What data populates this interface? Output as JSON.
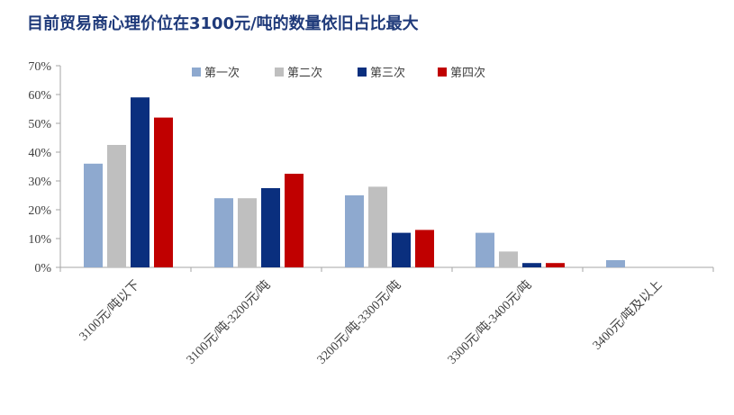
{
  "title": "目前贸易商心理价位在3100元/吨的数量依旧占比最大",
  "chart_data": {
    "type": "bar",
    "categories": [
      "3100元/吨以下",
      "3100元/吨-3200元/吨",
      "3200元/吨-3300元/吨",
      "3300元/吨-3400元/吨",
      "3400元/吨及以上"
    ],
    "series": [
      {
        "name": "第一次",
        "color": "#8EA9CF",
        "values": [
          36,
          24,
          25,
          12,
          2.5
        ]
      },
      {
        "name": "第二次",
        "color": "#BFBFBF",
        "values": [
          42.5,
          24,
          28,
          5.5,
          0
        ]
      },
      {
        "name": "第三次",
        "color": "#0A2F7E",
        "values": [
          59,
          27.5,
          12,
          1.5,
          0
        ]
      },
      {
        "name": "第四次",
        "color": "#C00000",
        "values": [
          52,
          32.5,
          13,
          1.5,
          0
        ]
      }
    ],
    "y_ticks": [
      "0%",
      "10%",
      "20%",
      "30%",
      "40%",
      "50%",
      "60%",
      "70%"
    ],
    "ylim": [
      0,
      70
    ],
    "legend_position": "top",
    "grid": false
  }
}
